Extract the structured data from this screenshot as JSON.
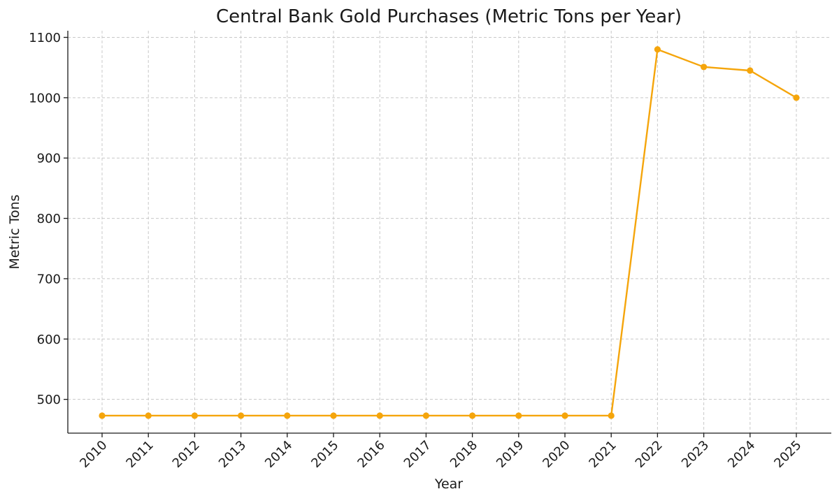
{
  "chart_data": {
    "type": "line",
    "title": "Central Bank Gold Purchases (Metric Tons per Year)",
    "xlabel": "Year",
    "ylabel": "Metric Tons",
    "x": [
      "2010",
      "2011",
      "2012",
      "2013",
      "2014",
      "2015",
      "2016",
      "2017",
      "2018",
      "2019",
      "2020",
      "2021",
      "2022",
      "2023",
      "2024",
      "2025"
    ],
    "series": [
      {
        "values": [
          473,
          473,
          473,
          473,
          473,
          473,
          473,
          473,
          473,
          473,
          473,
          473,
          1080,
          1051,
          1045,
          1000
        ],
        "color": "#f5a50b",
        "marker": "circle"
      }
    ],
    "yticks": [
      500,
      600,
      700,
      800,
      900,
      1000,
      1100
    ],
    "ylim": [
      444,
      1111
    ],
    "grid": true,
    "legend": "none",
    "xtick_rotation": "45"
  }
}
